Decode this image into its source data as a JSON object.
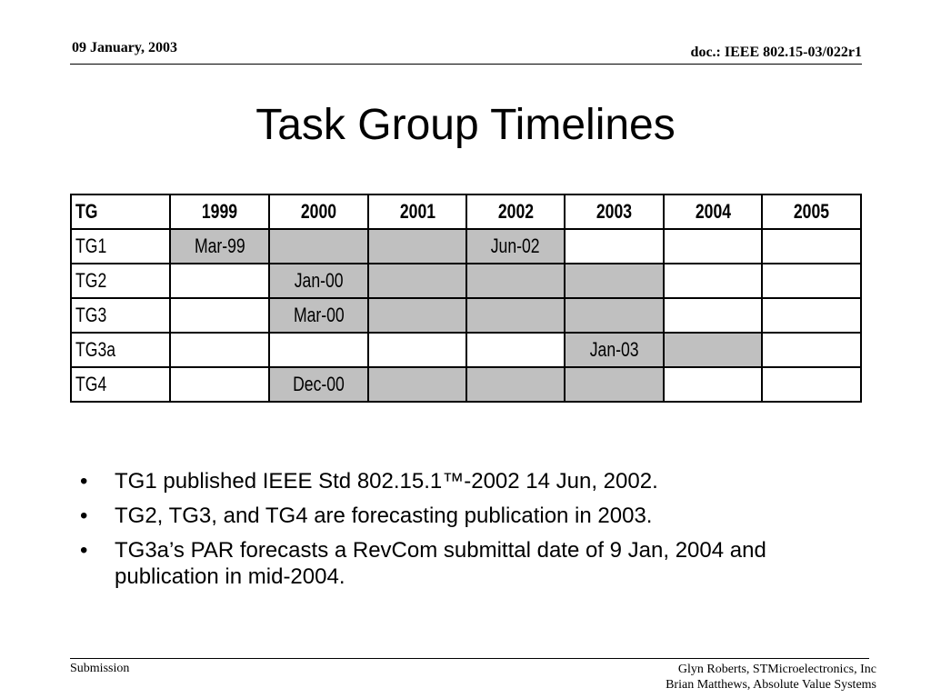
{
  "header": {
    "date": "09 January, 2003",
    "doc_id": "doc.: IEEE 802.15-03/022r1"
  },
  "title": "Task Group Timelines",
  "timeline_table": {
    "columns": [
      "TG",
      "1999",
      "2000",
      "2001",
      "2002",
      "2003",
      "2004",
      "2005"
    ],
    "rows": [
      {
        "label": "TG1",
        "cells": [
          {
            "text": "Mar-99",
            "shaded": true
          },
          {
            "text": "",
            "shaded": true
          },
          {
            "text": "",
            "shaded": true
          },
          {
            "text": "Jun-02",
            "shaded": true
          },
          {
            "text": "",
            "shaded": false
          },
          {
            "text": "",
            "shaded": false
          },
          {
            "text": "",
            "shaded": false
          }
        ]
      },
      {
        "label": "TG2",
        "cells": [
          {
            "text": "",
            "shaded": false
          },
          {
            "text": "Jan-00",
            "shaded": true
          },
          {
            "text": "",
            "shaded": true
          },
          {
            "text": "",
            "shaded": true
          },
          {
            "text": "",
            "shaded": true
          },
          {
            "text": "",
            "shaded": false
          },
          {
            "text": "",
            "shaded": false
          }
        ]
      },
      {
        "label": "TG3",
        "cells": [
          {
            "text": "",
            "shaded": false
          },
          {
            "text": "Mar-00",
            "shaded": true
          },
          {
            "text": "",
            "shaded": true
          },
          {
            "text": "",
            "shaded": true
          },
          {
            "text": "",
            "shaded": true
          },
          {
            "text": "",
            "shaded": false
          },
          {
            "text": "",
            "shaded": false
          }
        ]
      },
      {
        "label": "TG3a",
        "cells": [
          {
            "text": "",
            "shaded": false
          },
          {
            "text": "",
            "shaded": false
          },
          {
            "text": "",
            "shaded": false
          },
          {
            "text": "",
            "shaded": false
          },
          {
            "text": "Jan-03",
            "shaded": true
          },
          {
            "text": "",
            "shaded": true
          },
          {
            "text": "",
            "shaded": false
          }
        ]
      },
      {
        "label": "TG4",
        "cells": [
          {
            "text": "",
            "shaded": false
          },
          {
            "text": "Dec-00",
            "shaded": true
          },
          {
            "text": "",
            "shaded": true
          },
          {
            "text": "",
            "shaded": true
          },
          {
            "text": "",
            "shaded": true
          },
          {
            "text": "",
            "shaded": false
          },
          {
            "text": "",
            "shaded": false
          }
        ]
      }
    ],
    "shade_color": "#c0c0c0"
  },
  "bullets": [
    "TG1 published IEEE Std 802.15.1™-2002 14 Jun, 2002.",
    "TG2, TG3, and TG4 are forecasting publication in 2003.",
    "TG3a’s PAR forecasts a RevCom submittal date of 9 Jan, 2004 and publication in mid-2004."
  ],
  "bullet_glyph": "•",
  "footer": {
    "left": "Submission",
    "right_line1": "Glyn Roberts, STMicroelectronics, Inc",
    "right_line2": "Brian Matthews, Absolute Value Systems"
  }
}
